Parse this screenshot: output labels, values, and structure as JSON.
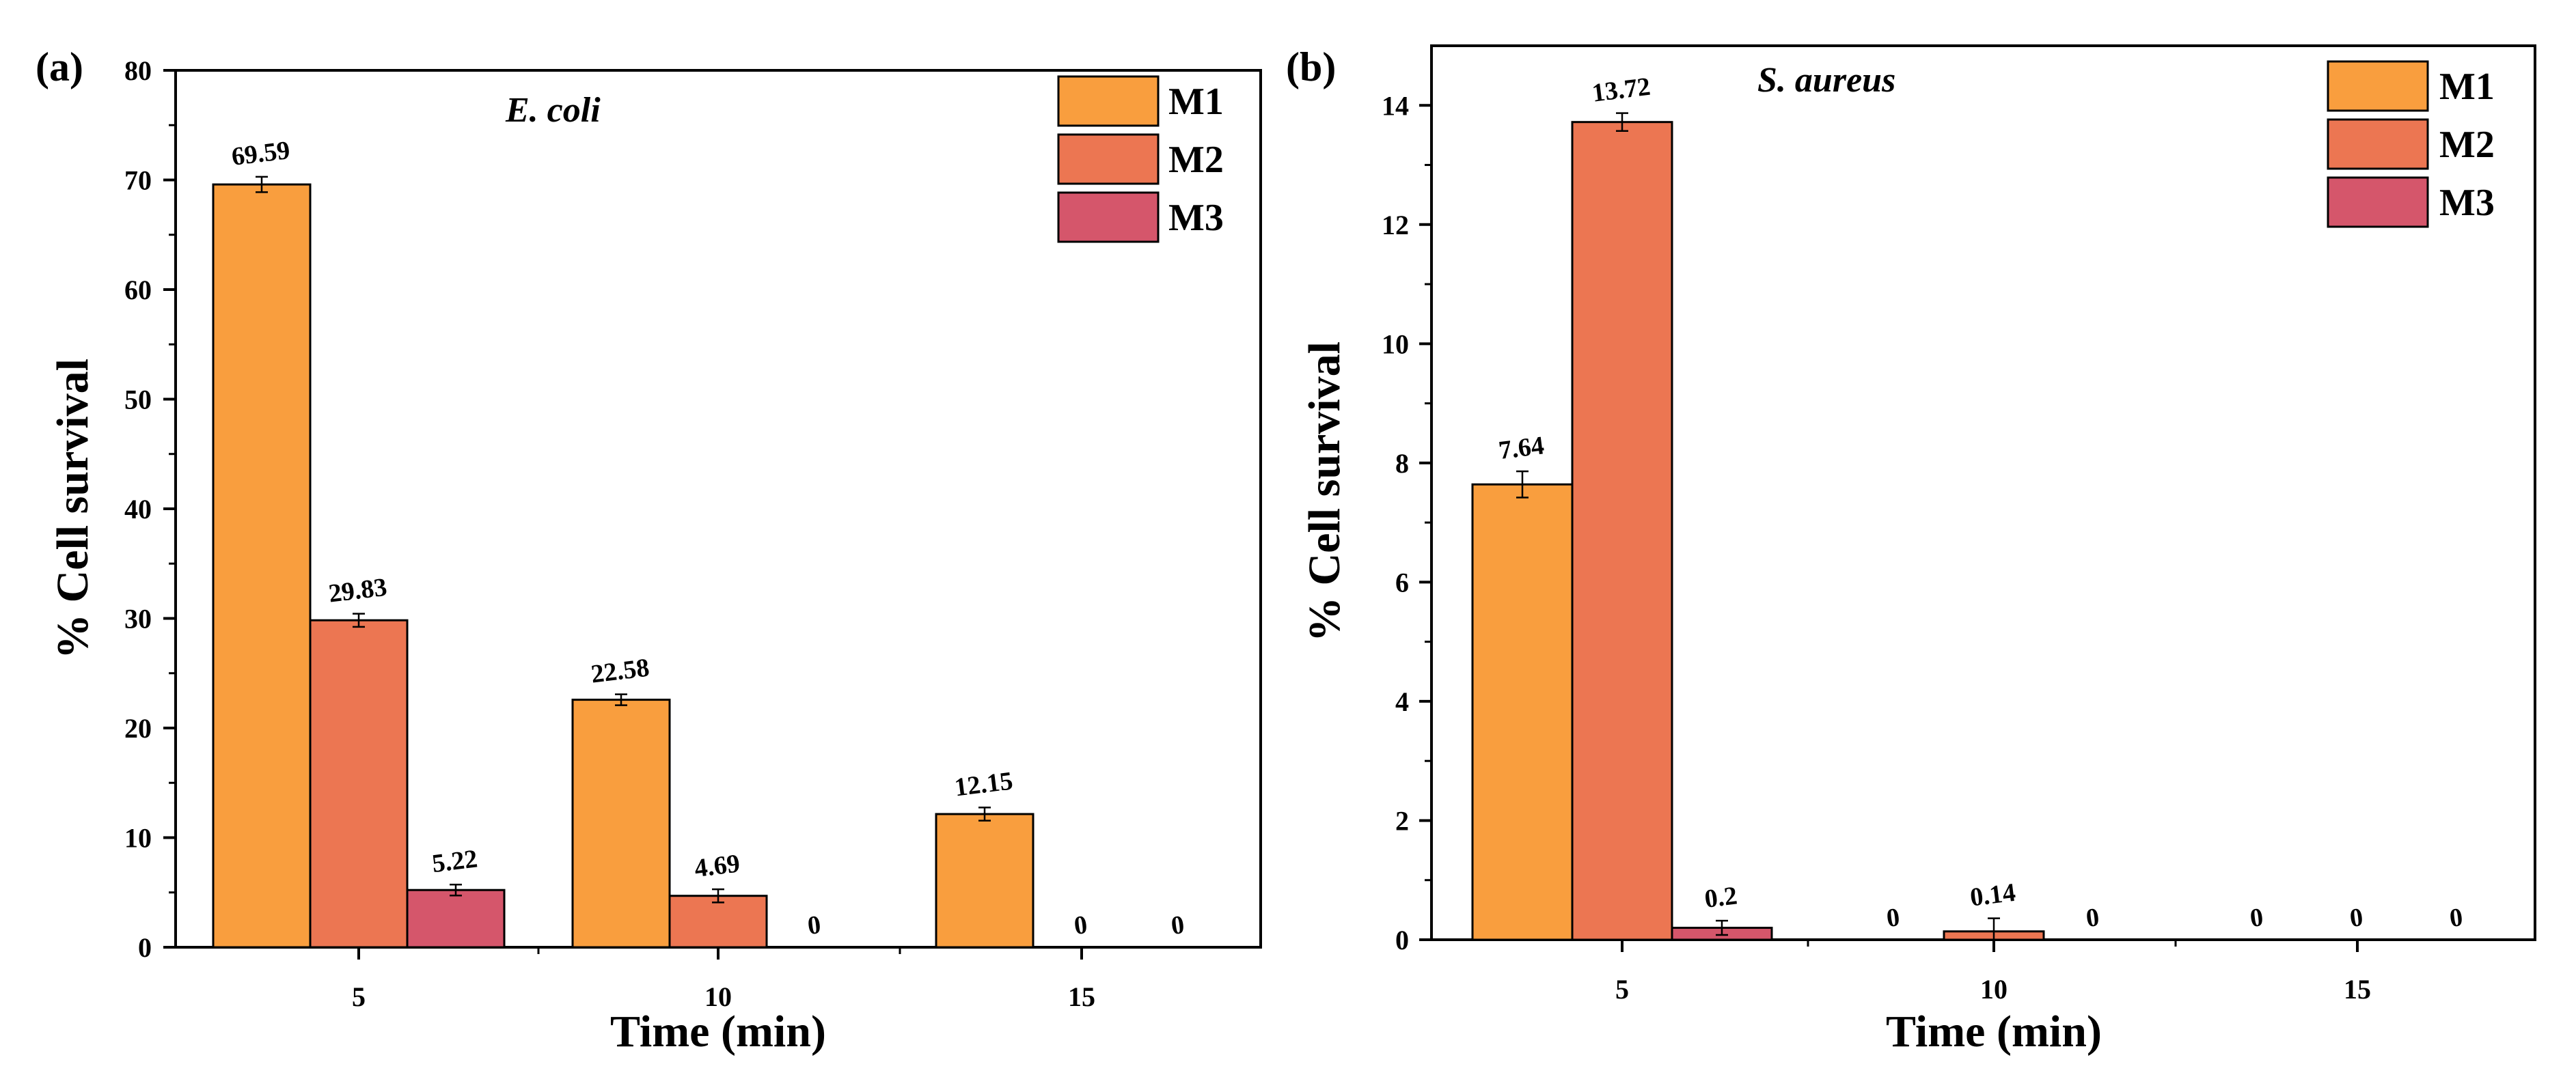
{
  "colors": {
    "M1": "#f99e3e",
    "M2": "#ec7652",
    "M3": "#d5566b",
    "axis": "#000000",
    "text": "#000000"
  },
  "chart_data": [
    {
      "type": "bar",
      "panel_label": "(a)",
      "organism": "E. coli",
      "categories": [
        "5",
        "10",
        "15"
      ],
      "series": [
        {
          "name": "M1",
          "values": [
            69.59,
            22.58,
            12.15
          ],
          "errors": [
            0.7,
            0.5,
            0.6
          ],
          "labels": [
            "69.59",
            "22.58",
            "12.15"
          ]
        },
        {
          "name": "M2",
          "values": [
            29.83,
            4.69,
            0
          ],
          "errors": [
            0.6,
            0.6,
            0
          ],
          "labels": [
            "29.83",
            "4.69",
            "0"
          ]
        },
        {
          "name": "M3",
          "values": [
            5.22,
            0,
            0
          ],
          "errors": [
            0.5,
            0,
            0
          ],
          "labels": [
            "5.22",
            "0",
            "0"
          ]
        }
      ],
      "xlabel": "Time (min)",
      "ylabel": "% Cell survival",
      "ylim": [
        0,
        80
      ],
      "yticks": [
        0,
        10,
        20,
        30,
        40,
        50,
        60,
        70,
        80
      ],
      "legend": [
        "M1",
        "M2",
        "M3"
      ],
      "legend_position": "top-right"
    },
    {
      "type": "bar",
      "panel_label": "(b)",
      "organism": "S. aureus",
      "categories": [
        "5",
        "10",
        "15"
      ],
      "series": [
        {
          "name": "M1",
          "values": [
            7.64,
            0,
            0
          ],
          "errors": [
            0.22,
            0,
            0
          ],
          "labels": [
            "7.64",
            "0",
            "0"
          ]
        },
        {
          "name": "M2",
          "values": [
            13.72,
            0.14,
            0
          ],
          "errors": [
            0.15,
            0.22,
            0
          ],
          "labels": [
            "13.72",
            "0.14",
            "0"
          ]
        },
        {
          "name": "M3",
          "values": [
            0.2,
            0,
            0
          ],
          "errors": [
            0.12,
            0,
            0
          ],
          "labels": [
            "0.2",
            "0",
            "0"
          ]
        }
      ],
      "xlabel": "Time (min)",
      "ylabel": "% Cell survival",
      "ylim": [
        0,
        15
      ],
      "yticks": [
        0,
        2,
        4,
        6,
        8,
        10,
        12,
        14
      ],
      "legend": [
        "M1",
        "M2",
        "M3"
      ],
      "legend_position": "top-right"
    }
  ]
}
